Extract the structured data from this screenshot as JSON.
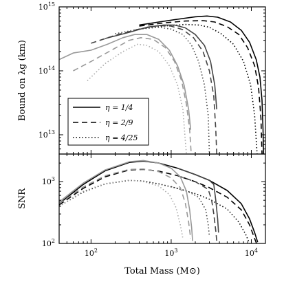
{
  "chart_data": [
    {
      "type": "line",
      "panel": "top",
      "ylabel": "Bound on λg (km)",
      "yscale": "log",
      "xscale": "log",
      "xlim": [
        40,
        15000
      ],
      "ylim": [
        5000000000000,
        1000000000000000
      ],
      "yticks": [
        {
          "value": 10000000000000,
          "mantissa": "10",
          "exp": "13"
        },
        {
          "value": 100000000000000,
          "mantissa": "10",
          "exp": "14"
        },
        {
          "value": 1000000000000000,
          "mantissa": "10",
          "exp": "15"
        }
      ],
      "legend": {
        "placement": "lower-left",
        "entries": [
          {
            "style": "solid",
            "label": "η = 1/4"
          },
          {
            "style": "dashed",
            "label": "η = 2/9"
          },
          {
            "style": "dotted",
            "label": "η = 4/25"
          }
        ]
      },
      "series": [
        {
          "group": "black",
          "style": "solid",
          "color": "#000000",
          "points": [
            [
              400,
              520000000000000
            ],
            [
              700,
              580000000000000
            ],
            [
              1200,
              640000000000000
            ],
            [
              2000,
              700000000000000
            ],
            [
              2800,
              720000000000000
            ],
            [
              3800,
              690000000000000
            ],
            [
              5500,
              580000000000000
            ],
            [
              7500,
              430000000000000
            ],
            [
              9500,
              280000000000000
            ],
            [
              11500,
              150000000000000
            ],
            [
              12800,
              80000000000000
            ],
            [
              13600,
              35000000000000
            ],
            [
              14000,
              12000000000000
            ],
            [
              14200,
              5000000000000
            ]
          ]
        },
        {
          "group": "black",
          "style": "dashed",
          "color": "#000000",
          "points": [
            [
              400,
              500000000000000
            ],
            [
              800,
              560000000000000
            ],
            [
              1500,
              600000000000000
            ],
            [
              2500,
              610000000000000
            ],
            [
              3500,
              580000000000000
            ],
            [
              5000,
              490000000000000
            ],
            [
              7000,
              370000000000000
            ],
            [
              9000,
              230000000000000
            ],
            [
              11000,
              120000000000000
            ],
            [
              12300,
              55000000000000
            ],
            [
              13200,
              18000000000000
            ],
            [
              13600,
              5000000000000
            ]
          ]
        },
        {
          "group": "black",
          "style": "dotted",
          "color": "#000000",
          "points": [
            [
              400,
              450000000000000
            ],
            [
              800,
              500000000000000
            ],
            [
              1500,
              530000000000000
            ],
            [
              2200,
              520000000000000
            ],
            [
              3000,
              480000000000000
            ],
            [
              4200,
              380000000000000
            ],
            [
              6000,
              260000000000000
            ],
            [
              8000,
              140000000000000
            ],
            [
              9800,
              60000000000000
            ],
            [
              11000,
              20000000000000
            ],
            [
              11800,
              5000000000000
            ]
          ]
        },
        {
          "group": "dark-gray",
          "style": "solid",
          "color": "#444444",
          "points": [
            [
              150,
              320000000000000
            ],
            [
              300,
              400000000000000
            ],
            [
              500,
              480000000000000
            ],
            [
              800,
              520000000000000
            ],
            [
              1100,
              520000000000000
            ],
            [
              1500,
              470000000000000
            ],
            [
              2000,
              370000000000000
            ],
            [
              2600,
              250000000000000
            ],
            [
              3100,
              140000000000000
            ],
            [
              3500,
              60000000000000
            ],
            [
              3700,
              25000000000000
            ]
          ]
        },
        {
          "group": "dark-gray",
          "style": "dashed",
          "color": "#444444",
          "points": [
            [
              100,
              270000000000000
            ],
            [
              200,
              360000000000000
            ],
            [
              400,
              450000000000000
            ],
            [
              700,
              510000000000000
            ],
            [
              1000,
              500000000000000
            ],
            [
              1400,
              440000000000000
            ],
            [
              1900,
              330000000000000
            ],
            [
              2500,
              200000000000000
            ],
            [
              3000,
              100000000000000
            ],
            [
              3400,
              40000000000000
            ],
            [
              3600,
              12000000000000
            ],
            [
              3700,
              5000000000000
            ]
          ]
        },
        {
          "group": "dark-gray",
          "style": "dotted",
          "color": "#444444",
          "points": [
            [
              200,
              380000000000000
            ],
            [
              400,
              450000000000000
            ],
            [
              700,
              480000000000000
            ],
            [
              1000,
              450000000000000
            ],
            [
              1400,
              370000000000000
            ],
            [
              1800,
              250000000000000
            ],
            [
              2200,
              140000000000000
            ],
            [
              2600,
              60000000000000
            ],
            [
              2900,
              20000000000000
            ],
            [
              3000,
              5000000000000
            ]
          ]
        },
        {
          "group": "light-gray",
          "style": "solid",
          "color": "#999999",
          "points": [
            [
              40,
              150000000000000
            ],
            [
              60,
              190000000000000
            ],
            [
              100,
              210000000000000
            ],
            [
              160,
              260000000000000
            ],
            [
              250,
              330000000000000
            ],
            [
              350,
              370000000000000
            ],
            [
              500,
              370000000000000
            ],
            [
              700,
              310000000000000
            ],
            [
              950,
              210000000000000
            ],
            [
              1200,
              120000000000000
            ],
            [
              1450,
              60000000000000
            ],
            [
              1650,
              25000000000000
            ],
            [
              1750,
              12000000000000
            ]
          ]
        },
        {
          "group": "light-gray",
          "style": "dashed",
          "color": "#999999",
          "points": [
            [
              60,
              100000000000000
            ],
            [
              100,
              140000000000000
            ],
            [
              180,
              210000000000000
            ],
            [
              300,
              300000000000000
            ],
            [
              420,
              330000000000000
            ],
            [
              600,
              310000000000000
            ],
            [
              850,
              230000000000000
            ],
            [
              1100,
              140000000000000
            ],
            [
              1350,
              70000000000000
            ],
            [
              1550,
              30000000000000
            ],
            [
              1700,
              12000000000000
            ],
            [
              1780,
              5000000000000
            ]
          ]
        },
        {
          "group": "light-gray",
          "style": "dotted",
          "color": "#aaaaaa",
          "points": [
            [
              90,
              70000000000000
            ],
            [
              150,
              130000000000000
            ],
            [
              250,
              200000000000000
            ],
            [
              380,
              260000000000000
            ],
            [
              500,
              250000000000000
            ],
            [
              700,
              200000000000000
            ],
            [
              950,
              120000000000000
            ],
            [
              1200,
              60000000000000
            ],
            [
              1400,
              25000000000000
            ],
            [
              1500,
              8000000000000
            ],
            [
              1550,
              5000000000000
            ]
          ]
        }
      ]
    },
    {
      "type": "line",
      "panel": "bottom",
      "ylabel": "SNR",
      "xlabel": "Total Mass (M⊙)",
      "yscale": "log",
      "xscale": "log",
      "xlim": [
        40,
        15000
      ],
      "ylim": [
        100,
        2800
      ],
      "yticks": [
        {
          "value": 100,
          "mantissa": "10",
          "exp": "2"
        },
        {
          "value": 1000,
          "mantissa": "10",
          "exp": "3"
        }
      ],
      "xticks": [
        {
          "value": 100,
          "mantissa": "10",
          "exp": "2"
        },
        {
          "value": 1000,
          "mantissa": "10",
          "exp": "3"
        },
        {
          "value": 10000,
          "mantissa": "10",
          "exp": "4"
        }
      ],
      "series": [
        {
          "group": "black",
          "style": "solid",
          "color": "#000000",
          "points": [
            [
              40,
              440
            ],
            [
              80,
              900
            ],
            [
              150,
              1500
            ],
            [
              300,
              2050
            ],
            [
              450,
              2150
            ],
            [
              700,
              2000
            ],
            [
              1200,
              1650
            ],
            [
              2000,
              1300
            ],
            [
              3000,
              1050
            ],
            [
              5000,
              720
            ],
            [
              7500,
              440
            ],
            [
              9500,
              250
            ],
            [
              11000,
              150
            ],
            [
              12000,
              105
            ]
          ]
        },
        {
          "group": "black",
          "style": "dashed",
          "color": "#000000",
          "points": [
            [
              40,
              420
            ],
            [
              80,
              780
            ],
            [
              150,
              1200
            ],
            [
              300,
              1550
            ],
            [
              450,
              1580
            ],
            [
              700,
              1480
            ],
            [
              1200,
              1250
            ],
            [
              2000,
              1000
            ],
            [
              3000,
              800
            ],
            [
              5000,
              560
            ],
            [
              7500,
              350
            ],
            [
              9500,
              200
            ],
            [
              11000,
              120
            ],
            [
              11600,
              100
            ]
          ]
        },
        {
          "group": "black",
          "style": "dotted",
          "color": "#000000",
          "points": [
            [
              40,
              400
            ],
            [
              80,
              680
            ],
            [
              150,
              920
            ],
            [
              300,
              1050
            ],
            [
              450,
              1020
            ],
            [
              700,
              920
            ],
            [
              1200,
              780
            ],
            [
              2000,
              640
            ],
            [
              3000,
              520
            ],
            [
              5000,
              360
            ],
            [
              7000,
              220
            ],
            [
              8500,
              140
            ],
            [
              9500,
              100
            ]
          ]
        },
        {
          "group": "dark-gray",
          "style": "solid",
          "color": "#444444",
          "points": [
            [
              1200,
              1650
            ],
            [
              2000,
              1300
            ],
            [
              3000,
              1050
            ],
            [
              3400,
              900
            ],
            [
              3600,
              500
            ],
            [
              3800,
              250
            ],
            [
              3900,
              150
            ]
          ]
        },
        {
          "group": "dark-gray",
          "style": "dashed",
          "color": "#444444",
          "points": [
            [
              1200,
              1250
            ],
            [
              2000,
              1000
            ],
            [
              2900,
              750
            ],
            [
              3200,
              500
            ],
            [
              3400,
              300
            ],
            [
              3600,
              160
            ],
            [
              3700,
              110
            ]
          ]
        },
        {
          "group": "dark-gray",
          "style": "dotted",
          "color": "#444444",
          "points": [
            [
              1000,
              830
            ],
            [
              1600,
              700
            ],
            [
              2200,
              560
            ],
            [
              2700,
              350
            ],
            [
              2900,
              200
            ],
            [
              3000,
              130
            ]
          ]
        },
        {
          "group": "light-gray",
          "style": "solid",
          "color": "#999999",
          "points": [
            [
              40,
              470
            ],
            [
              80,
              950
            ],
            [
              150,
              1550
            ],
            [
              300,
              2100
            ],
            [
              450,
              2200
            ],
            [
              700,
              2000
            ],
            [
              1000,
              1650
            ],
            [
              1300,
              1200
            ],
            [
              1550,
              700
            ],
            [
              1700,
              350
            ],
            [
              1800,
              180
            ],
            [
              1850,
              110
            ]
          ]
        },
        {
          "group": "light-gray",
          "style": "dashed",
          "color": "#999999",
          "points": [
            [
              40,
              440
            ],
            [
              80,
              820
            ],
            [
              150,
              1250
            ],
            [
              300,
              1580
            ],
            [
              450,
              1600
            ],
            [
              700,
              1450
            ],
            [
              1000,
              1150
            ],
            [
              1300,
              800
            ],
            [
              1500,
              450
            ],
            [
              1650,
              220
            ],
            [
              1750,
              120
            ]
          ]
        },
        {
          "group": "light-gray",
          "style": "dotted",
          "color": "#aaaaaa",
          "points": [
            [
              40,
              400
            ],
            [
              80,
              700
            ],
            [
              150,
              930
            ],
            [
              300,
              1060
            ],
            [
              450,
              1000
            ],
            [
              700,
              850
            ],
            [
              950,
              620
            ],
            [
              1150,
              380
            ],
            [
              1300,
              200
            ],
            [
              1400,
              120
            ]
          ]
        }
      ]
    }
  ]
}
